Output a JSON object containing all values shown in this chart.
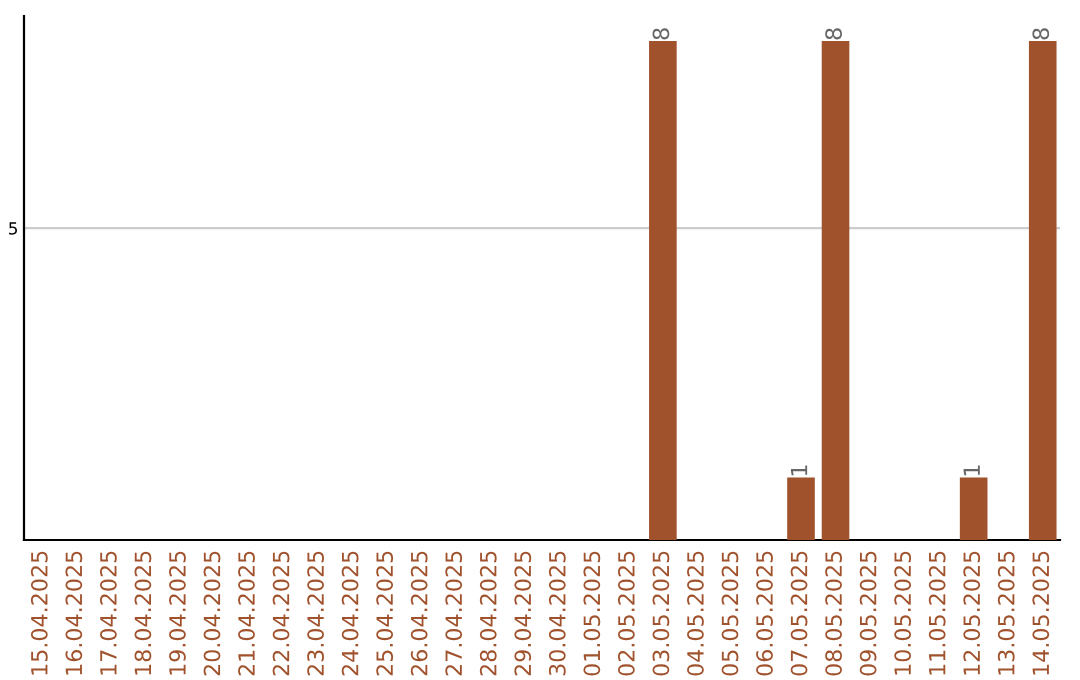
{
  "chart_data": {
    "type": "bar",
    "categories": [
      "15.04.2025",
      "16.04.2025",
      "17.04.2025",
      "18.04.2025",
      "19.04.2025",
      "20.04.2025",
      "21.04.2025",
      "22.04.2025",
      "23.04.2025",
      "24.04.2025",
      "25.04.2025",
      "26.04.2025",
      "27.04.2025",
      "28.04.2025",
      "29.04.2025",
      "30.04.2025",
      "01.05.2025",
      "02.05.2025",
      "03.05.2025",
      "04.05.2025",
      "05.05.2025",
      "06.05.2025",
      "07.05.2025",
      "08.05.2025",
      "09.05.2025",
      "10.05.2025",
      "11.05.2025",
      "12.05.2025",
      "13.05.2025",
      "14.05.2025"
    ],
    "values": [
      null,
      null,
      null,
      null,
      null,
      null,
      null,
      null,
      null,
      null,
      null,
      null,
      null,
      null,
      null,
      null,
      null,
      null,
      8,
      null,
      null,
      null,
      1,
      8,
      null,
      null,
      null,
      1,
      null,
      8
    ],
    "color": "#a0522d",
    "ylim": [
      0,
      8.4
    ],
    "yticks": [
      5
    ],
    "grid": "y",
    "data_labels": true
  }
}
